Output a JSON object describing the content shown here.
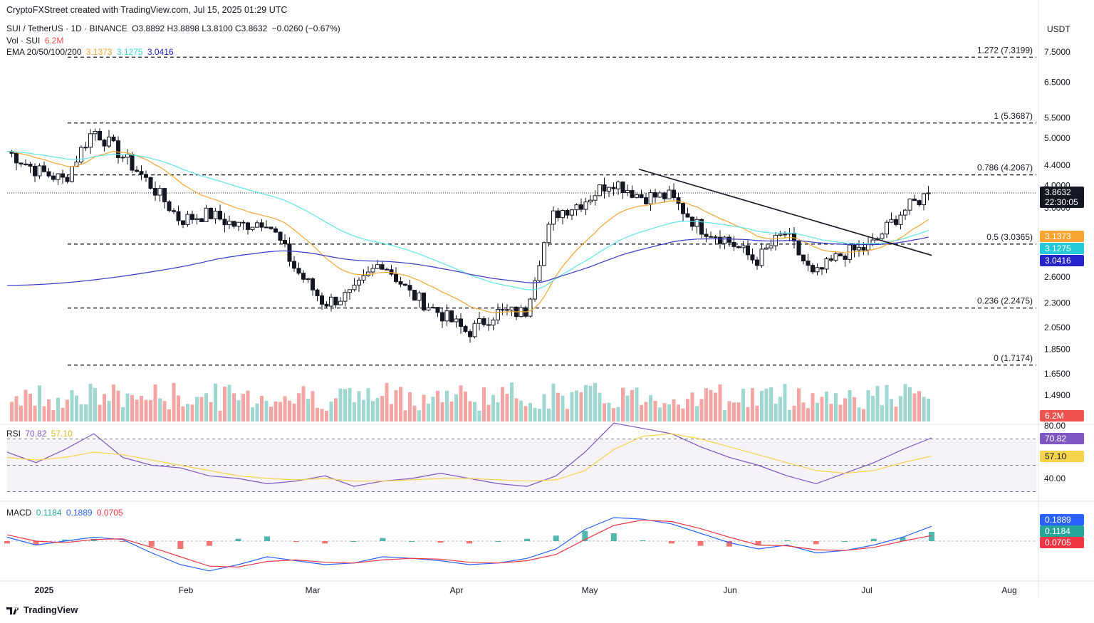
{
  "header": {
    "credit": "CryptoFXStreet created with TradingView.com, Jul 15, 2025 01:29 UTC",
    "symbol": "SUI / TetherUS · 1D · BINANCE",
    "ohlc": "O3.8892  H3.8898  L3.8100  C3.8632",
    "change": "−0.0260 (−0.67%)",
    "vol_label": "Vol · SUI",
    "vol_value": "6.2M",
    "ema_label": "EMA 20/50/100/200",
    "ema20": "3.1373",
    "ema50": "3.1275",
    "ema100": "3.0416",
    "rsi_label": "RSI",
    "rsi_value": "70.82",
    "rsi_ma": "57.10",
    "macd_label": "MACD",
    "macd_hist": "0.1184",
    "macd_line": "0.1889",
    "macd_signal": "0.0705"
  },
  "currency": "USDT",
  "price_tag": {
    "price": "3.8632",
    "countdown": "22:30:05"
  },
  "tags": {
    "ema_orange": "3.1373",
    "ema_cyan": "3.1275",
    "ema_blue": "3.0416",
    "vol": "6.2M",
    "rsi": "70.82",
    "rsi_ma": "57.10",
    "macd_line": "0.1889",
    "macd_hist": "0.1184",
    "macd_signal": "0.0705"
  },
  "logo": "TradingView",
  "colors": {
    "up": "#26a69a",
    "down": "#ef5350",
    "ema20": "#f7a531",
    "ema50": "#5ee6e6",
    "ema100": "#3838c8",
    "rsi": "#7e57c2",
    "rsi_ma": "#f5d34a",
    "macd": "#2962ff",
    "signal": "#f23645"
  },
  "chart_data": [
    {
      "type": "candlestick",
      "title": "SUI / TetherUS · 1D · BINANCE",
      "x_ticks": [
        "2025",
        "Feb",
        "Mar",
        "Apr",
        "May",
        "Jun",
        "Jul",
        "Aug"
      ],
      "y_scale": "log",
      "y_ticks": [
        "7.5000",
        "6.5000",
        "5.5000",
        "5.0000",
        "4.4000",
        "4.0000",
        "3.6000",
        "2.6000",
        "2.3000",
        "2.0500",
        "1.8500",
        "1.6500",
        "1.4900"
      ],
      "fib_levels": [
        {
          "label": "1.272 (7.3199)",
          "value": 7.3199
        },
        {
          "label": "1 (5.3687)",
          "value": 5.3687
        },
        {
          "label": "0.786 (4.2067)",
          "value": 4.2067
        },
        {
          "label": "0.5 (3.0365)",
          "value": 3.0365
        },
        {
          "label": "0.236 (2.2475)",
          "value": 2.2475
        },
        {
          "label": "0 (1.7174)",
          "value": 1.7174
        }
      ],
      "last_close": 3.8632,
      "closes_weekly": [
        4.7,
        4.3,
        4.1,
        5.2,
        4.6,
        4.0,
        3.4,
        3.5,
        3.3,
        3.4,
        2.7,
        2.3,
        2.4,
        2.8,
        2.4,
        2.2,
        2.0,
        2.2,
        2.2,
        3.5,
        3.7,
        4.1,
        3.8,
        3.8,
        3.3,
        3.1,
        2.8,
        3.2,
        2.6,
        2.9,
        3.0,
        3.5,
        3.86
      ],
      "trendline": {
        "from": 4.32,
        "to": 2.88
      },
      "ema_last": {
        "ema20": 3.1373,
        "ema50": 3.1275,
        "ema100": 3.0416
      }
    },
    {
      "type": "bar",
      "title": "Vol · SUI",
      "last": "6.2M"
    },
    {
      "type": "line",
      "title": "RSI",
      "y_ticks": [
        "80.00",
        "40.00"
      ],
      "series": [
        {
          "name": "RSI",
          "values": [
            60,
            52,
            62,
            74,
            56,
            50,
            48,
            42,
            40,
            36,
            38,
            42,
            34,
            38,
            40,
            44,
            40,
            36,
            34,
            42,
            60,
            82,
            78,
            74,
            64,
            56,
            50,
            42,
            36,
            44,
            52,
            62,
            70.82
          ]
        },
        {
          "name": "MA",
          "values": [
            56,
            54,
            56,
            60,
            58,
            54,
            50,
            46,
            42,
            40,
            39,
            40,
            38,
            38,
            39,
            40,
            40,
            39,
            38,
            39,
            46,
            62,
            72,
            74,
            70,
            64,
            58,
            52,
            46,
            44,
            46,
            52,
            57.1
          ]
        }
      ]
    },
    {
      "type": "line",
      "title": "MACD",
      "series": [
        {
          "name": "MACD",
          "values": [
            0.05,
            -0.05,
            0.0,
            0.05,
            0.02,
            -0.15,
            -0.3,
            -0.38,
            -0.3,
            -0.2,
            -0.25,
            -0.3,
            -0.28,
            -0.2,
            -0.22,
            -0.25,
            -0.3,
            -0.28,
            -0.22,
            -0.1,
            0.15,
            0.3,
            0.28,
            0.22,
            0.1,
            -0.02,
            -0.1,
            -0.05,
            -0.15,
            -0.12,
            -0.05,
            0.05,
            0.1889
          ]
        },
        {
          "name": "Signal",
          "values": [
            0.08,
            0.0,
            -0.02,
            0.02,
            0.03,
            -0.08,
            -0.2,
            -0.32,
            -0.33,
            -0.26,
            -0.24,
            -0.27,
            -0.28,
            -0.24,
            -0.22,
            -0.23,
            -0.27,
            -0.28,
            -0.25,
            -0.17,
            0.02,
            0.2,
            0.27,
            0.25,
            0.16,
            0.05,
            -0.05,
            -0.06,
            -0.11,
            -0.12,
            -0.08,
            0.0,
            0.0705
          ]
        }
      ],
      "histogram_last": 0.1184
    }
  ]
}
